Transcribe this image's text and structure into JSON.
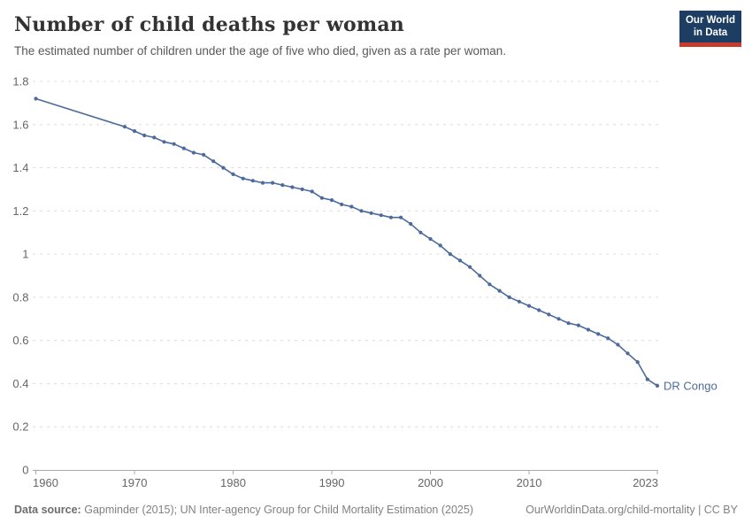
{
  "header": {
    "title": "Number of child deaths per woman",
    "subtitle": "The estimated number of children under the age of five who died, given as a rate per woman."
  },
  "logo": {
    "line1": "Our World",
    "line2": "in Data"
  },
  "colors": {
    "line": "#4C6A9C",
    "end_label": "#4C6A9C",
    "logo_bg": "#1D3D63",
    "logo_accent": "#C8392E",
    "gridline": "#DCDCDC",
    "axis": "#A8A8A8",
    "tick_label": "#666666"
  },
  "chart_data": {
    "type": "line",
    "title": "Number of child deaths per woman",
    "xlabel": "",
    "ylabel": "",
    "xlim": [
      1960,
      2023
    ],
    "ylim": [
      0,
      1.8
    ],
    "grid": "dashed-horizontal",
    "legend_position": "end-of-line-label",
    "x_ticks": [
      {
        "v": 1960,
        "label": "1960"
      },
      {
        "v": 1970,
        "label": "1970"
      },
      {
        "v": 1980,
        "label": "1980"
      },
      {
        "v": 1990,
        "label": "1990"
      },
      {
        "v": 2000,
        "label": "2000"
      },
      {
        "v": 2010,
        "label": "2010"
      },
      {
        "v": 2023,
        "label": "2023"
      }
    ],
    "y_ticks": [
      {
        "v": 0,
        "label": "0"
      },
      {
        "v": 0.2,
        "label": "0.2"
      },
      {
        "v": 0.4,
        "label": "0.4"
      },
      {
        "v": 0.6,
        "label": "0.6"
      },
      {
        "v": 0.8,
        "label": "0.8"
      },
      {
        "v": 1,
        "label": "1"
      },
      {
        "v": 1.2,
        "label": "1.2"
      },
      {
        "v": 1.4,
        "label": "1.4"
      },
      {
        "v": 1.6,
        "label": "1.6"
      },
      {
        "v": 1.8,
        "label": "1.8"
      }
    ],
    "series": [
      {
        "name": "DR Congo",
        "color": "#4C6A9C",
        "points": [
          [
            1960,
            1.72
          ],
          [
            1969,
            1.59
          ],
          [
            1970,
            1.57
          ],
          [
            1971,
            1.55
          ],
          [
            1972,
            1.54
          ],
          [
            1973,
            1.52
          ],
          [
            1974,
            1.51
          ],
          [
            1975,
            1.49
          ],
          [
            1976,
            1.47
          ],
          [
            1977,
            1.46
          ],
          [
            1978,
            1.43
          ],
          [
            1979,
            1.4
          ],
          [
            1980,
            1.37
          ],
          [
            1981,
            1.35
          ],
          [
            1982,
            1.34
          ],
          [
            1983,
            1.33
          ],
          [
            1984,
            1.33
          ],
          [
            1985,
            1.32
          ],
          [
            1986,
            1.31
          ],
          [
            1987,
            1.3
          ],
          [
            1988,
            1.29
          ],
          [
            1989,
            1.26
          ],
          [
            1990,
            1.25
          ],
          [
            1991,
            1.23
          ],
          [
            1992,
            1.22
          ],
          [
            1993,
            1.2
          ],
          [
            1994,
            1.19
          ],
          [
            1995,
            1.18
          ],
          [
            1996,
            1.17
          ],
          [
            1997,
            1.17
          ],
          [
            1998,
            1.14
          ],
          [
            1999,
            1.1
          ],
          [
            2000,
            1.07
          ],
          [
            2001,
            1.04
          ],
          [
            2002,
            1.0
          ],
          [
            2003,
            0.97
          ],
          [
            2004,
            0.94
          ],
          [
            2005,
            0.9
          ],
          [
            2006,
            0.86
          ],
          [
            2007,
            0.83
          ],
          [
            2008,
            0.8
          ],
          [
            2009,
            0.78
          ],
          [
            2010,
            0.76
          ],
          [
            2011,
            0.74
          ],
          [
            2012,
            0.72
          ],
          [
            2013,
            0.7
          ],
          [
            2014,
            0.68
          ],
          [
            2015,
            0.67
          ],
          [
            2016,
            0.65
          ],
          [
            2017,
            0.63
          ],
          [
            2018,
            0.61
          ],
          [
            2019,
            0.58
          ],
          [
            2020,
            0.54
          ],
          [
            2021,
            0.5
          ],
          [
            2022,
            0.42
          ],
          [
            2023,
            0.39
          ]
        ]
      }
    ]
  },
  "footer": {
    "source_label": "Data source:",
    "source_text": "Gapminder (2015); UN Inter-agency Group for Child Mortality Estimation (2025)",
    "right_text": "OurWorldinData.org/child-mortality | CC BY"
  }
}
